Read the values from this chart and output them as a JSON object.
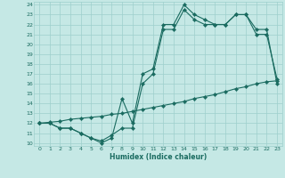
{
  "xlabel": "Humidex (Indice chaleur)",
  "bg_color": "#c5e8e5",
  "grid_color": "#9ecfcc",
  "line_color": "#1a6b60",
  "xlim": [
    -0.5,
    23.5
  ],
  "ylim": [
    9.7,
    24.3
  ],
  "xticks": [
    0,
    1,
    2,
    3,
    4,
    5,
    6,
    7,
    8,
    9,
    10,
    11,
    12,
    13,
    14,
    15,
    16,
    17,
    18,
    19,
    20,
    21,
    22,
    23
  ],
  "yticks": [
    10,
    11,
    12,
    13,
    14,
    15,
    16,
    17,
    18,
    19,
    20,
    21,
    22,
    23,
    24
  ],
  "line1_x": [
    0,
    1,
    2,
    3,
    4,
    5,
    6,
    7,
    8,
    9,
    10,
    11,
    12,
    13,
    14,
    15,
    16,
    17,
    18,
    19,
    20,
    21,
    22,
    23
  ],
  "line1_y": [
    12,
    12,
    11.5,
    11.5,
    11,
    10.5,
    10,
    10.5,
    14.5,
    12,
    17,
    17.5,
    22,
    22,
    24,
    23,
    22.5,
    22,
    22,
    23,
    23,
    21,
    21,
    16.5
  ],
  "line2_x": [
    0,
    1,
    2,
    3,
    4,
    5,
    6,
    7,
    8,
    9,
    10,
    11,
    12,
    13,
    14,
    15,
    16,
    17,
    18,
    19,
    20,
    21,
    22,
    23
  ],
  "line2_y": [
    12,
    12,
    11.5,
    11.5,
    11,
    10.5,
    10.2,
    10.8,
    11.5,
    11.5,
    16,
    17,
    21.5,
    21.5,
    23.5,
    22.5,
    22,
    22,
    22,
    23,
    23,
    21.5,
    21.5,
    16
  ],
  "line3_x": [
    0,
    1,
    2,
    3,
    4,
    5,
    6,
    7,
    8,
    9,
    10,
    11,
    12,
    13,
    14,
    15,
    16,
    17,
    18,
    19,
    20,
    21,
    22,
    23
  ],
  "line3_y": [
    12,
    12.1,
    12.2,
    12.4,
    12.5,
    12.6,
    12.7,
    12.9,
    13.0,
    13.2,
    13.4,
    13.6,
    13.8,
    14.0,
    14.2,
    14.5,
    14.7,
    14.9,
    15.2,
    15.5,
    15.7,
    16.0,
    16.2,
    16.3
  ]
}
